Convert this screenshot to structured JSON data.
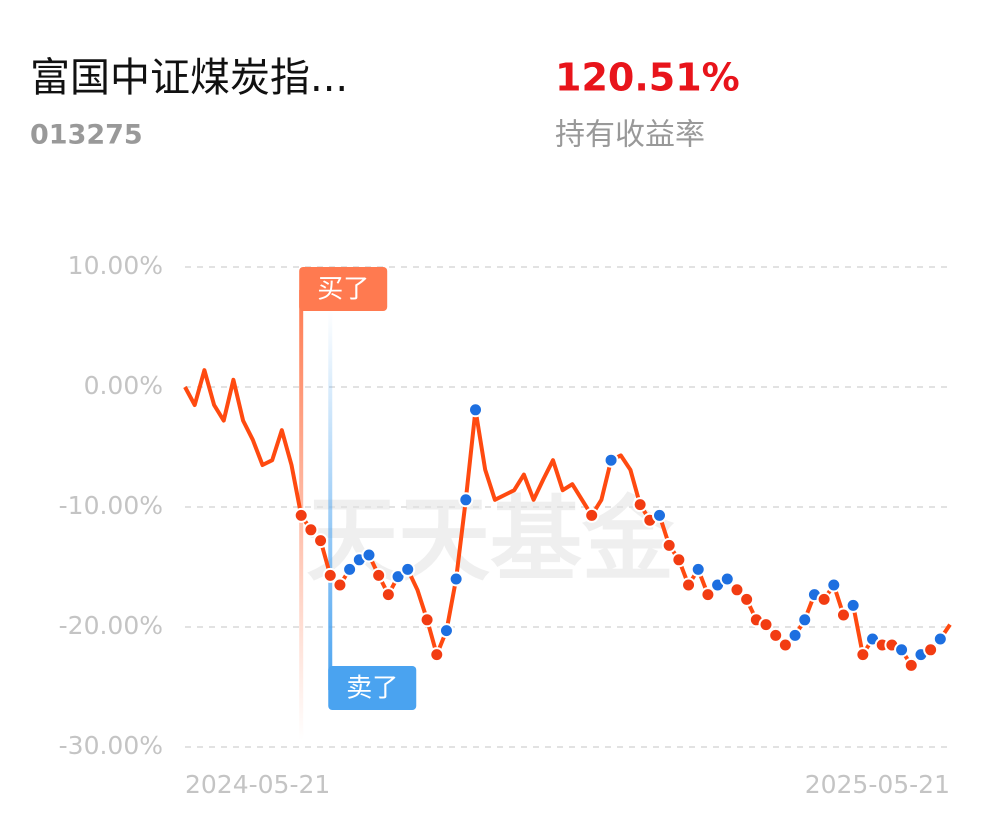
{
  "header": {
    "title": "富国中证煤炭指...",
    "code": "013275",
    "return_value": "120.51%",
    "return_label": "持有收益率"
  },
  "chart_data": {
    "type": "line",
    "watermark": "天天基金",
    "color": "#ff4a10",
    "buy_color": "#f23c12",
    "sell_color": "#1d6fe0",
    "categories": [
      "2024-05-21",
      null,
      null,
      null,
      null,
      null,
      null,
      null,
      null,
      null,
      null,
      null,
      null,
      null,
      null,
      null,
      null,
      null,
      null,
      null,
      null,
      null,
      null,
      null,
      null,
      null,
      null,
      null,
      null,
      null,
      null,
      null,
      null,
      null,
      null,
      null,
      null,
      null,
      null,
      null,
      null,
      null,
      null,
      null,
      null,
      null,
      null,
      null,
      null,
      null,
      null,
      null,
      null,
      null,
      null,
      null,
      null,
      null,
      null,
      null,
      null,
      null,
      null,
      null,
      null,
      null,
      null,
      null,
      null,
      null,
      null,
      null,
      null,
      null,
      null,
      null,
      null,
      null,
      null,
      "2025-05-21"
    ],
    "values": [
      0,
      -1.5,
      1.4,
      -1.5,
      -2.8,
      0.6,
      -2.8,
      -4.4,
      -6.5,
      -6.1,
      -3.6,
      -6.5,
      -10.7,
      -11.9,
      -12.8,
      -15.7,
      -16.5,
      -15.2,
      -14.4,
      -14,
      -15.7,
      -17.3,
      -15.8,
      -15.2,
      -16.9,
      -19.4,
      -22.3,
      -20.3,
      -16,
      -9.4,
      -1.9,
      -6.9,
      -9.4,
      -9,
      -8.6,
      -7.3,
      -9.4,
      -7.7,
      -6.1,
      -8.6,
      -8.1,
      -9.4,
      -10.7,
      -9.4,
      -6.1,
      -5.7,
      -6.9,
      -9.8,
      -11.1,
      -10.7,
      -13.2,
      -14.4,
      -16.5,
      -15.2,
      -17.3,
      -16.5,
      -16,
      -16.9,
      -17.7,
      -19.4,
      -19.8,
      -20.7,
      -21.5,
      -20.7,
      -19.4,
      -17.3,
      -17.7,
      -16.5,
      -19,
      -18.2,
      -22.3,
      -21,
      -21.5,
      -21.5,
      -21.9,
      -23.2,
      -22.3,
      -21.9,
      -21,
      -19.8
    ],
    "trades": [
      null,
      null,
      null,
      null,
      null,
      null,
      null,
      null,
      null,
      null,
      null,
      null,
      "buy",
      "buy",
      "buy",
      "buy",
      "buy",
      "sell",
      "sell",
      "sell",
      "buy",
      "buy",
      "sell",
      "sell",
      null,
      "buy",
      "buy",
      "sell",
      "sell",
      "sell",
      "sell",
      null,
      null,
      null,
      null,
      null,
      null,
      null,
      null,
      null,
      null,
      null,
      "buy",
      null,
      "sell",
      null,
      null,
      "buy",
      "buy",
      "sell",
      "buy",
      "buy",
      "buy",
      "sell",
      "buy",
      "sell",
      "sell",
      "buy",
      "buy",
      "buy",
      "buy",
      "buy",
      "buy",
      "sell",
      "sell",
      "sell",
      "buy",
      "sell",
      "buy",
      "sell",
      "buy",
      "sell",
      "buy",
      "buy",
      "sell",
      "buy",
      "sell",
      "buy",
      "sell",
      null
    ],
    "annotations": [
      {
        "text": "买了",
        "index": 12,
        "color": "#ff7a50"
      },
      {
        "text": "卖了",
        "index": 15,
        "color": "#4aa3f0"
      }
    ],
    "ylim": [
      -30,
      10
    ],
    "yticks": [
      {
        "value": 10,
        "label": "10.00%"
      },
      {
        "value": 0,
        "label": "0.00%"
      },
      {
        "value": -10,
        "label": "-10.00%"
      },
      {
        "value": -20,
        "label": "-20.00%"
      },
      {
        "value": -30,
        "label": "-30.00%"
      }
    ],
    "grid": true
  }
}
